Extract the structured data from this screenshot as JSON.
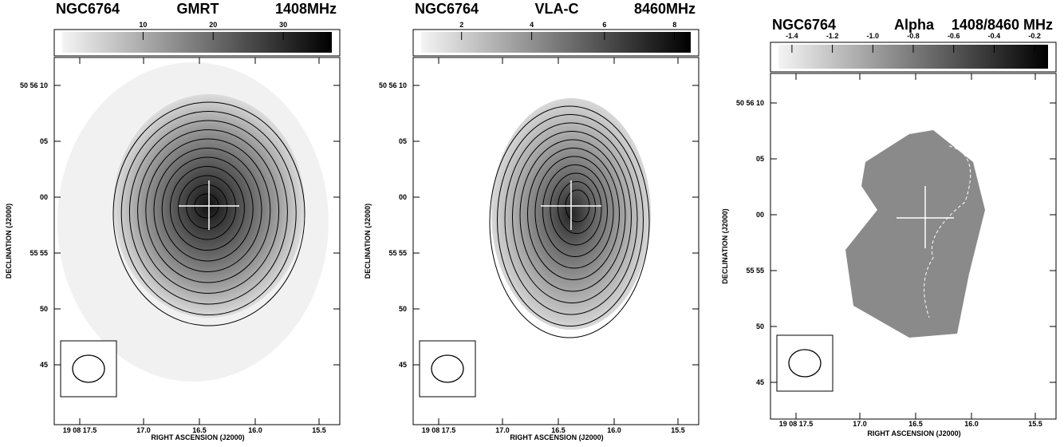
{
  "panels": [
    {
      "title": [
        "NGC6764",
        "GMRT",
        "1408MHz"
      ],
      "colorbar_ticks": [
        "10",
        "20",
        "30"
      ],
      "y_ticks": [
        "50 56 10",
        "05",
        "00",
        "55 55",
        "50",
        "45"
      ],
      "x_ticks": [
        "19 08 17.5",
        "17.0",
        "16.5",
        "16.0",
        "15.5"
      ],
      "x_label": "RIGHT ASCENSION (J2000)",
      "y_label": "DECLINATION (J2000)"
    },
    {
      "title": [
        "NGC6764",
        "VLA-C",
        "8460MHz"
      ],
      "colorbar_ticks": [
        "2",
        "4",
        "6",
        "8"
      ],
      "y_ticks": [
        "50 56 10",
        "05",
        "00",
        "55 55",
        "50",
        "45"
      ],
      "x_ticks": [
        "19 08 17.5",
        "17.0",
        "16.5",
        "16.0",
        "15.5"
      ],
      "x_label": "RIGHT ASCENSION (J2000)",
      "y_label": "DECLINATION (J2000)"
    },
    {
      "title": [
        "NGC6764",
        "Alpha",
        "1408/8460 MHz"
      ],
      "colorbar_ticks": [
        "-1.4",
        "-1.2",
        "-1.0",
        "-0.8",
        "-0.6",
        "-0.4",
        "-0.2"
      ],
      "y_ticks": [
        "50 56 10",
        "05",
        "00",
        "55 55",
        "50",
        "45"
      ],
      "x_ticks": [
        "19 08 17.5",
        "17.0",
        "16.5",
        "16.0",
        "15.5"
      ],
      "x_label": "RIGHT ASCENSION (J2000)",
      "y_label": "DECLINATION (J2000)"
    }
  ]
}
